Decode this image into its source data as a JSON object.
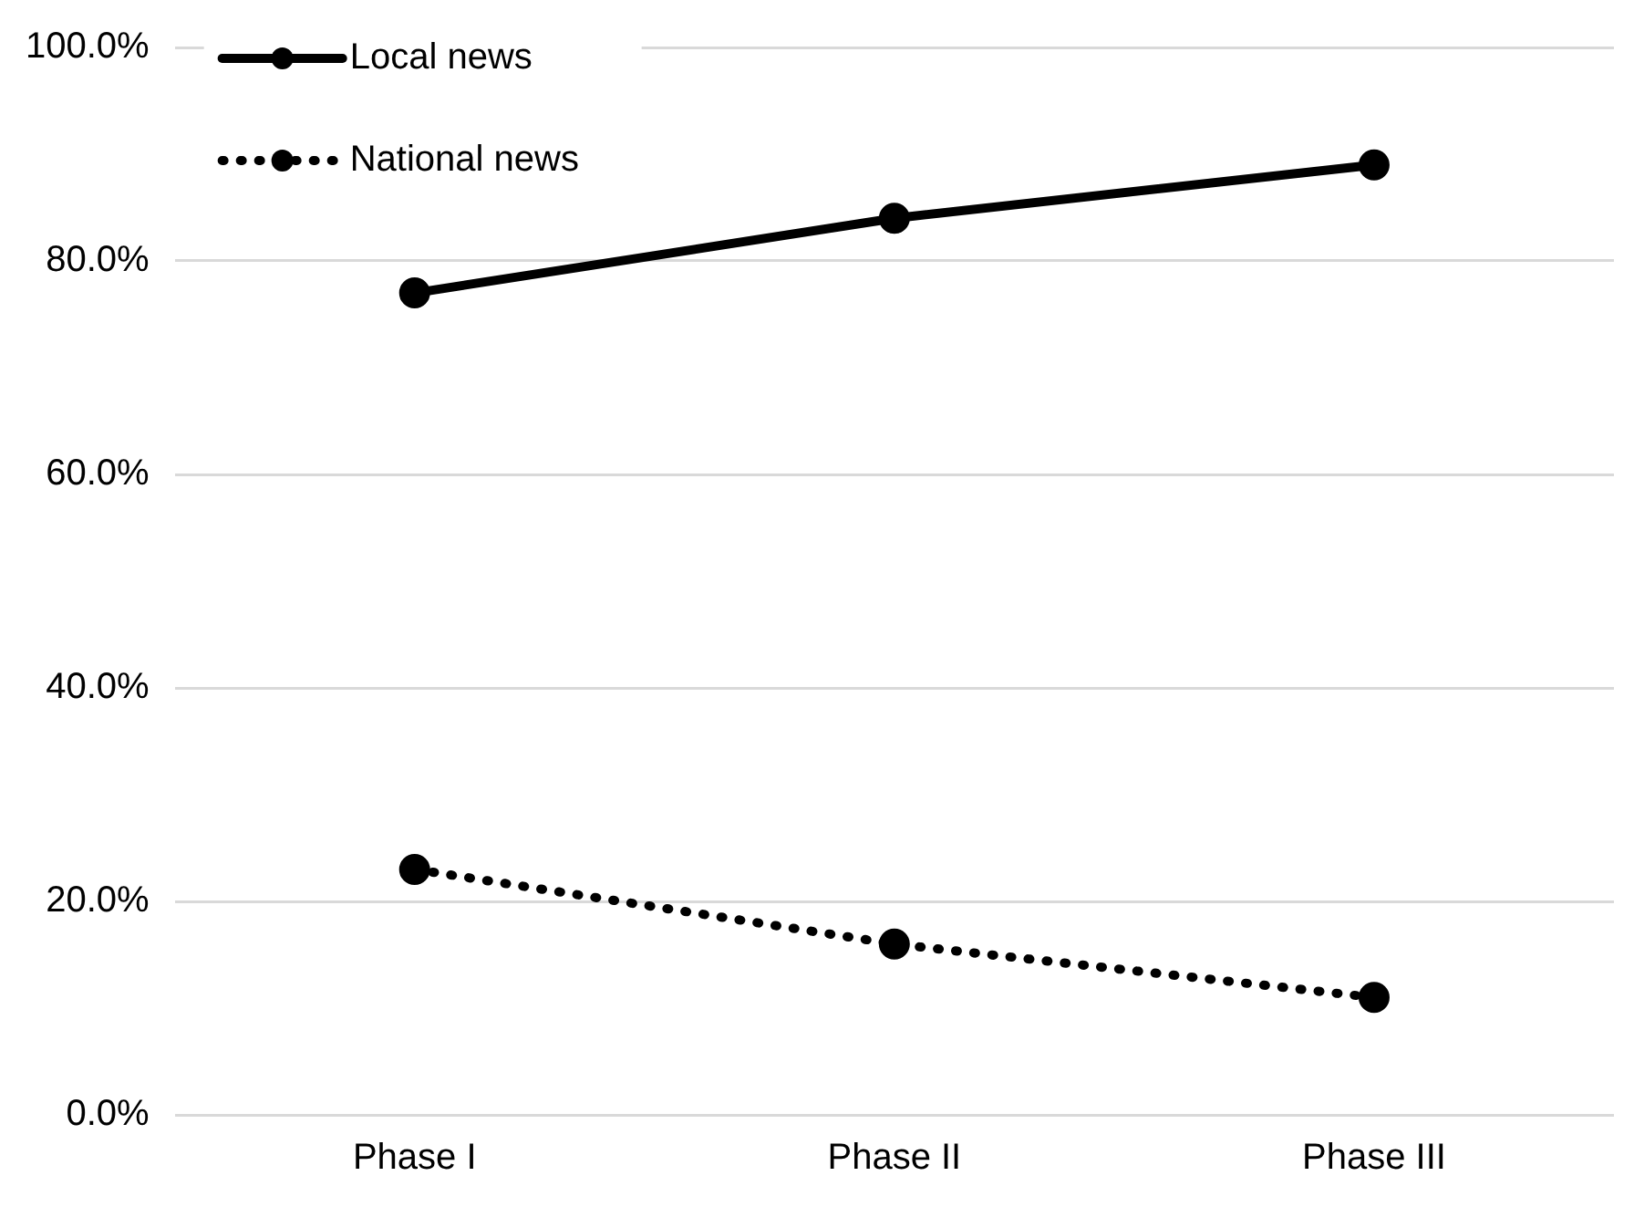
{
  "chart_data": {
    "type": "line",
    "categories": [
      "Phase I",
      "Phase II",
      "Phase III"
    ],
    "series": [
      {
        "name": "Local news",
        "color": "#000000",
        "values": [
          77,
          84,
          89
        ],
        "line_style": "solid"
      },
      {
        "name": "National news",
        "color": "#000000",
        "values": [
          23,
          16,
          11
        ],
        "line_style": "dotted"
      }
    ],
    "ylim": [
      0,
      100
    ],
    "yticks": [
      {
        "value": 0,
        "label": "0.0%"
      },
      {
        "value": 20,
        "label": "20.0%"
      },
      {
        "value": 40,
        "label": "40.0%"
      },
      {
        "value": 60,
        "label": "60.0%"
      },
      {
        "value": 80,
        "label": "80.0%"
      },
      {
        "value": 100,
        "label": "100.0%"
      }
    ],
    "grid": "y",
    "legend": "top left",
    "marker": "circle"
  }
}
